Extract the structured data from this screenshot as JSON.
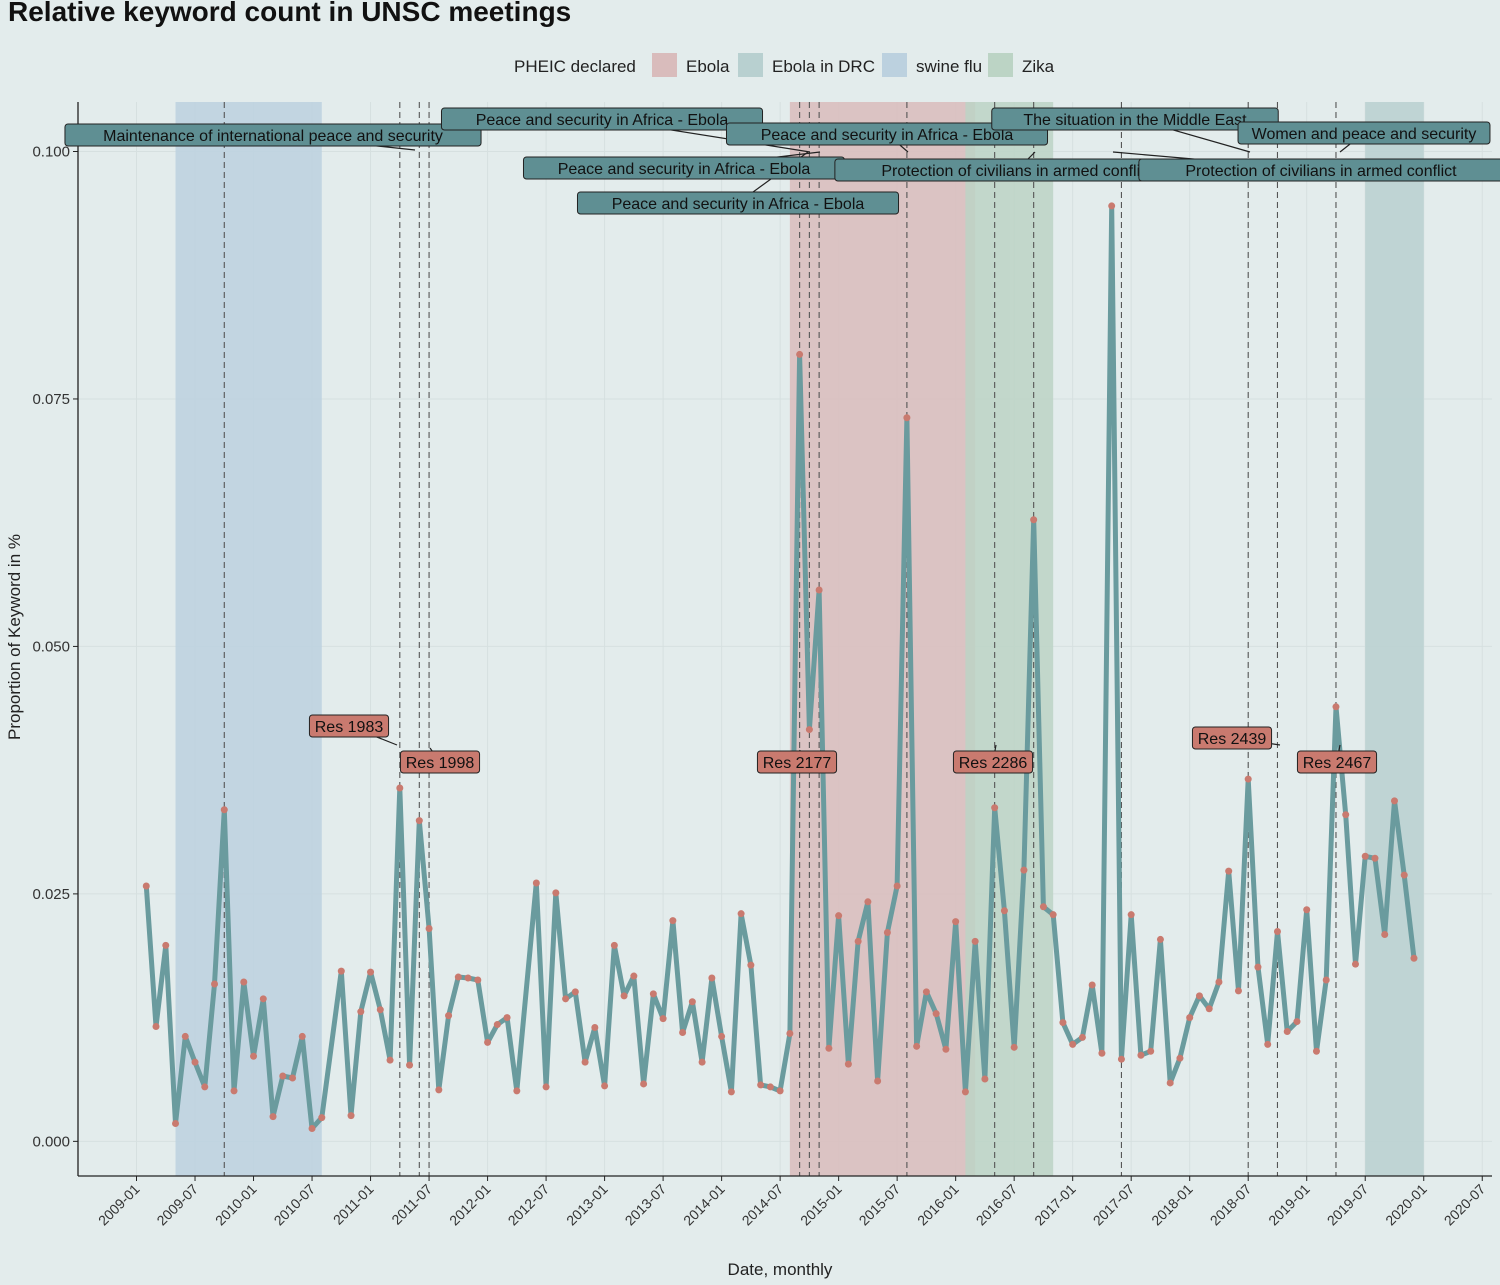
{
  "chart_data": {
    "type": "line",
    "title": "Relative keyword count in UNSC meetings",
    "xlabel": "Date, monthly",
    "ylabel": "Proportion of Keyword in %",
    "ylim": [
      -0.0035,
      0.105
    ],
    "y_ticks": [
      "0.000",
      "0.025",
      "0.050",
      "0.075",
      "0.100"
    ],
    "y_tick_values": [
      0,
      0.025,
      0.05,
      0.075,
      0.1
    ],
    "x_ticks": [
      "2009-01",
      "2009-07",
      "2010-01",
      "2010-07",
      "2011-01",
      "2011-07",
      "2012-01",
      "2012-07",
      "2013-01",
      "2013-07",
      "2014-01",
      "2014-07",
      "2015-01",
      "2015-07",
      "2016-01",
      "2016-07",
      "2017-01",
      "2017-07",
      "2018-01",
      "2018-07",
      "2019-01",
      "2019-07",
      "2020-01",
      "2020-07"
    ],
    "x_range": [
      "2008-07",
      "2020-08"
    ],
    "grid": true,
    "legend": {
      "title": "PHEIC declared",
      "position": "top",
      "items": [
        {
          "label": "Ebola",
          "color": "#d9bcbc"
        },
        {
          "label": "Ebola in DRC",
          "color": "#b8d0d0"
        },
        {
          "label": "swine flu",
          "color": "#bcd1df"
        },
        {
          "label": "Zika",
          "color": "#bcd4c5"
        }
      ]
    },
    "bands": [
      {
        "label": "swine flu",
        "start": "2009-05",
        "end": "2010-08",
        "color": "#bcd1df"
      },
      {
        "label": "Ebola",
        "start": "2014-08",
        "end": "2016-03",
        "color": "#d9bcbc"
      },
      {
        "label": "Zika",
        "start": "2016-02",
        "end": "2016-11",
        "color": "#bcd4c5"
      },
      {
        "label": "Ebola in DRC",
        "start": "2019-07",
        "end": "2020-01",
        "color": "#b8d0d0"
      }
    ],
    "vlines": [
      "2009-10",
      "2011-04",
      "2011-06",
      "2011-07",
      "2014-09",
      "2014-10",
      "2014-11",
      "2015-08",
      "2016-05",
      "2016-09",
      "2017-06",
      "2018-07",
      "2018-10",
      "2019-04"
    ],
    "series": [
      {
        "color": "#6a9b9e",
        "point_color": "#c97a6f",
        "points": [
          [
            "2009-02",
            0.0258
          ],
          [
            "2009-03",
            0.0116
          ],
          [
            "2009-04",
            0.0198
          ],
          [
            "2009-05",
            0.0018
          ],
          [
            "2009-06",
            0.0106
          ],
          [
            "2009-07",
            0.008
          ],
          [
            "2009-08",
            0.0055
          ],
          [
            "2009-09",
            0.0159
          ],
          [
            "2009-10",
            0.0335
          ],
          [
            "2009-11",
            0.0051
          ],
          [
            "2009-12",
            0.0161
          ],
          [
            "2010-01",
            0.0086
          ],
          [
            "2010-02",
            0.0144
          ],
          [
            "2010-03",
            0.0025
          ],
          [
            "2010-04",
            0.0066
          ],
          [
            "2010-05",
            0.0064
          ],
          [
            "2010-06",
            0.0106
          ],
          [
            "2010-07",
            0.0013
          ],
          [
            "2010-08",
            0.0024
          ],
          [
            "2010-10",
            0.0172
          ],
          [
            "2010-11",
            0.0026
          ],
          [
            "2010-12",
            0.0131
          ],
          [
            "2011-01",
            0.0171
          ],
          [
            "2011-02",
            0.0133
          ],
          [
            "2011-03",
            0.0082
          ],
          [
            "2011-04",
            0.0357
          ],
          [
            "2011-05",
            0.0077
          ],
          [
            "2011-06",
            0.0324
          ],
          [
            "2011-07",
            0.0215
          ],
          [
            "2011-08",
            0.0052
          ],
          [
            "2011-09",
            0.0127
          ],
          [
            "2011-10",
            0.0166
          ],
          [
            "2011-11",
            0.0165
          ],
          [
            "2011-12",
            0.0163
          ],
          [
            "2012-01",
            0.01
          ],
          [
            "2012-02",
            0.0118
          ],
          [
            "2012-03",
            0.0125
          ],
          [
            "2012-04",
            0.0051
          ],
          [
            "2012-06",
            0.0261
          ],
          [
            "2012-07",
            0.0055
          ],
          [
            "2012-08",
            0.0251
          ],
          [
            "2012-09",
            0.0144
          ],
          [
            "2012-10",
            0.0151
          ],
          [
            "2012-11",
            0.008
          ],
          [
            "2012-12",
            0.0115
          ],
          [
            "2013-01",
            0.0056
          ],
          [
            "2013-02",
            0.0198
          ],
          [
            "2013-03",
            0.0147
          ],
          [
            "2013-04",
            0.0167
          ],
          [
            "2013-05",
            0.0058
          ],
          [
            "2013-06",
            0.0149
          ],
          [
            "2013-07",
            0.0124
          ],
          [
            "2013-08",
            0.0223
          ],
          [
            "2013-09",
            0.011
          ],
          [
            "2013-10",
            0.0141
          ],
          [
            "2013-11",
            0.008
          ],
          [
            "2013-12",
            0.0165
          ],
          [
            "2014-01",
            0.0106
          ],
          [
            "2014-02",
            0.005
          ],
          [
            "2014-03",
            0.023
          ],
          [
            "2014-04",
            0.0178
          ],
          [
            "2014-05",
            0.0057
          ],
          [
            "2014-06",
            0.0055
          ],
          [
            "2014-07",
            0.0051
          ],
          [
            "2014-08",
            0.0109
          ],
          [
            "2014-09",
            0.0795
          ],
          [
            "2014-10",
            0.0416
          ],
          [
            "2014-11",
            0.0557
          ],
          [
            "2014-12",
            0.0094
          ],
          [
            "2015-01",
            0.0228
          ],
          [
            "2015-02",
            0.0078
          ],
          [
            "2015-03",
            0.0202
          ],
          [
            "2015-04",
            0.0242
          ],
          [
            "2015-05",
            0.0061
          ],
          [
            "2015-06",
            0.0211
          ],
          [
            "2015-07",
            0.0258
          ],
          [
            "2015-08",
            0.0731
          ],
          [
            "2015-09",
            0.0096
          ],
          [
            "2015-10",
            0.0151
          ],
          [
            "2015-11",
            0.0129
          ],
          [
            "2015-12",
            0.0093
          ],
          [
            "2016-01",
            0.0222
          ],
          [
            "2016-02",
            0.005
          ],
          [
            "2016-03",
            0.0202
          ],
          [
            "2016-04",
            0.0063
          ],
          [
            "2016-05",
            0.0337
          ],
          [
            "2016-06",
            0.0233
          ],
          [
            "2016-07",
            0.0095
          ],
          [
            "2016-08",
            0.0274
          ],
          [
            "2016-09",
            0.0628
          ],
          [
            "2016-10",
            0.0237
          ],
          [
            "2016-11",
            0.0229
          ],
          [
            "2016-12",
            0.012
          ],
          [
            "2017-01",
            0.0098
          ],
          [
            "2017-02",
            0.0105
          ],
          [
            "2017-03",
            0.0158
          ],
          [
            "2017-04",
            0.0089
          ],
          [
            "2017-05",
            0.0945
          ],
          [
            "2017-06",
            0.0083
          ],
          [
            "2017-07",
            0.0229
          ],
          [
            "2017-08",
            0.0087
          ],
          [
            "2017-09",
            0.0091
          ],
          [
            "2017-10",
            0.0204
          ],
          [
            "2017-11",
            0.0059
          ],
          [
            "2017-12",
            0.0084
          ],
          [
            "2018-01",
            0.0125
          ],
          [
            "2018-02",
            0.0147
          ],
          [
            "2018-03",
            0.0134
          ],
          [
            "2018-04",
            0.0161
          ],
          [
            "2018-05",
            0.0273
          ],
          [
            "2018-06",
            0.0152
          ],
          [
            "2018-07",
            0.0366
          ],
          [
            "2018-08",
            0.0176
          ],
          [
            "2018-09",
            0.0098
          ],
          [
            "2018-10",
            0.0212
          ],
          [
            "2018-11",
            0.0111
          ],
          [
            "2018-12",
            0.0121
          ],
          [
            "2019-01",
            0.0234
          ],
          [
            "2019-02",
            0.0091
          ],
          [
            "2019-03",
            0.0163
          ],
          [
            "2019-04",
            0.0439
          ],
          [
            "2019-05",
            0.033
          ],
          [
            "2019-06",
            0.0179
          ],
          [
            "2019-07",
            0.0288
          ],
          [
            "2019-08",
            0.0286
          ],
          [
            "2019-09",
            0.0209
          ],
          [
            "2019-10",
            0.0344
          ],
          [
            "2019-11",
            0.0269
          ],
          [
            "2019-12",
            0.0185
          ]
        ]
      }
    ],
    "annotations_meetings": [
      {
        "text": "Maintenance of international peace and security",
        "x": "2009-10"
      },
      {
        "text": "Peace and security in Africa - Ebola",
        "x": "2014-09"
      },
      {
        "text": "Peace and security in Africa - Ebola",
        "x": "2014-10"
      },
      {
        "text": "Peace and security in Africa - Ebola",
        "x": "2014-11"
      },
      {
        "text": "Peace and security in Africa - Ebola",
        "x": "2015-08"
      },
      {
        "text": "The situation in the Middle East",
        "x": "2018-07"
      },
      {
        "text": "Women and peace and security",
        "x": "2019-04"
      },
      {
        "text": "Protection of civilians in armed conflict",
        "x": "2016-09"
      },
      {
        "text": "Protection of civilians in armed conflict",
        "x": "2017-06"
      }
    ],
    "annotations_resolutions": [
      {
        "text": "Res 1983",
        "x": "2011-06"
      },
      {
        "text": "Res 1998",
        "x": "2011-07"
      },
      {
        "text": "Res 2177",
        "x": "2014-09"
      },
      {
        "text": "Res 2286",
        "x": "2016-05"
      },
      {
        "text": "Res 2439",
        "x": "2018-10"
      },
      {
        "text": "Res 2467",
        "x": "2019-04"
      }
    ],
    "meeting_label_color": "#5f8f93",
    "resolution_label_color": "#c97a6f"
  }
}
